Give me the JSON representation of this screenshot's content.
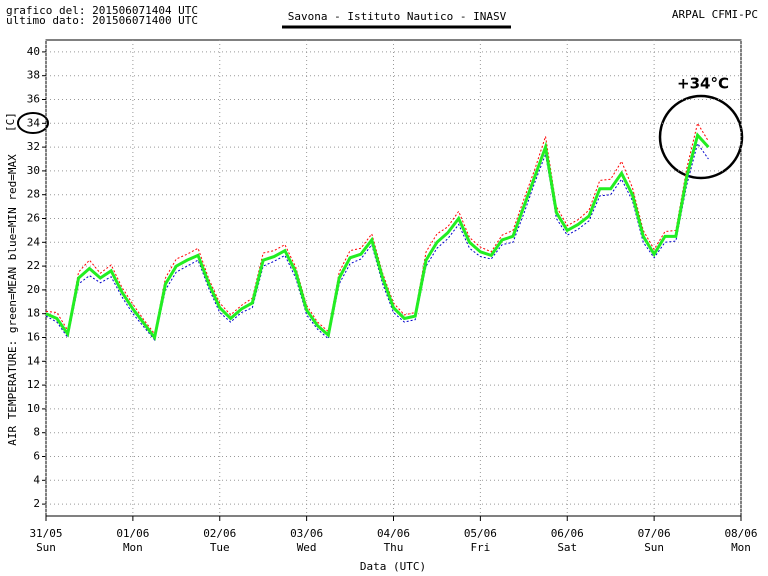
{
  "header": {
    "plotted": "grafico del: 201506071404 UTC",
    "last_data": "ultimo dato: 201506071400 UTC",
    "source": "ARPAL CFMI-PC"
  },
  "chart_data": {
    "type": "line",
    "title": "Savona - Istituto Nautico - INASV",
    "y_label": "AIR TEMPERATURE: green=MEAN  blue=MIN  red=MAX",
    "y_unit": "[C]",
    "x_label": "Data (UTC)",
    "annotation": "+34°C",
    "grid": true,
    "xlim": [
      0,
      8
    ],
    "xticks": [
      {
        "value": 0,
        "label": "31/05",
        "day": "Sun"
      },
      {
        "value": 1,
        "label": "01/06",
        "day": "Mon"
      },
      {
        "value": 2,
        "label": "02/06",
        "day": "Tue"
      },
      {
        "value": 3,
        "label": "03/06",
        "day": "Wed"
      },
      {
        "value": 4,
        "label": "04/06",
        "day": "Thu"
      },
      {
        "value": 5,
        "label": "05/06",
        "day": "Fri"
      },
      {
        "value": 6,
        "label": "06/06",
        "day": "Sat"
      },
      {
        "value": 7,
        "label": "07/06",
        "day": "Sun"
      },
      {
        "value": 8,
        "label": "08/06",
        "day": "Mon"
      }
    ],
    "ylim": [
      1,
      41
    ],
    "yticks": [
      2,
      4,
      6,
      8,
      10,
      12,
      14,
      16,
      18,
      20,
      22,
      24,
      26,
      28,
      30,
      32,
      34,
      36,
      38,
      40
    ],
    "x": [
      0,
      0.125,
      0.25,
      0.375,
      0.5,
      0.625,
      0.75,
      0.875,
      1,
      1.125,
      1.25,
      1.375,
      1.5,
      1.625,
      1.75,
      1.875,
      2,
      2.125,
      2.25,
      2.375,
      2.5,
      2.625,
      2.75,
      2.875,
      3,
      3.125,
      3.25,
      3.375,
      3.5,
      3.625,
      3.75,
      3.875,
      4,
      4.125,
      4.25,
      4.375,
      4.5,
      4.625,
      4.75,
      4.875,
      5,
      5.125,
      5.25,
      5.375,
      5.5,
      5.625,
      5.75,
      5.875,
      6,
      6.125,
      6.25,
      6.375,
      6.5,
      6.625,
      6.75,
      6.875,
      7,
      7.125,
      7.25,
      7.375,
      7.5,
      7.625
    ],
    "series": [
      {
        "color": "#ff0000",
        "dash": true,
        "values": [
          18.2,
          18.1,
          16.6,
          21.5,
          22.5,
          21.4,
          22.1,
          20.2,
          18.8,
          17.5,
          16.3,
          21.0,
          22.6,
          23.0,
          23.5,
          20.9,
          18.9,
          17.9,
          18.7,
          19.3,
          23.1,
          23.3,
          23.8,
          21.9,
          18.7,
          17.3,
          16.5,
          21.5,
          23.3,
          23.5,
          24.7,
          21.4,
          18.9,
          17.9,
          18.1,
          23.2,
          24.7,
          25.3,
          26.6,
          24.4,
          23.6,
          23.2,
          24.6,
          25.0,
          27.6,
          30.1,
          32.9,
          27.0,
          25.4,
          25.9,
          26.7,
          29.2,
          29.3,
          30.8,
          28.6,
          25.0,
          23.4,
          24.9,
          25.0,
          30.2,
          34.0,
          32.5
        ]
      },
      {
        "color": "#0000cc",
        "dash": true,
        "values": [
          17.8,
          17.3,
          16.0,
          20.5,
          21.2,
          20.6,
          21.1,
          19.4,
          18.0,
          16.9,
          15.8,
          20.0,
          21.5,
          22.0,
          22.5,
          20.1,
          18.1,
          17.3,
          18.1,
          18.5,
          22.0,
          22.4,
          22.9,
          21.0,
          17.9,
          16.7,
          15.9,
          20.5,
          22.2,
          22.6,
          23.8,
          20.5,
          18.1,
          17.3,
          17.5,
          22.0,
          23.5,
          24.3,
          25.5,
          23.5,
          22.8,
          22.6,
          23.8,
          24.0,
          26.4,
          29.0,
          31.4,
          26.0,
          24.6,
          25.1,
          25.8,
          27.9,
          28.0,
          29.3,
          27.5,
          24.0,
          22.7,
          24.0,
          24.1,
          28.8,
          32.3,
          31.0
        ]
      },
      {
        "color": "#22ee22",
        "dash": false,
        "values": [
          18.0,
          17.6,
          16.3,
          21.0,
          21.8,
          21.0,
          21.6,
          19.8,
          18.4,
          17.2,
          16.0,
          20.5,
          22.0,
          22.5,
          22.9,
          20.5,
          18.5,
          17.6,
          18.4,
          18.9,
          22.5,
          22.8,
          23.3,
          21.5,
          18.3,
          17.0,
          16.2,
          21.0,
          22.7,
          23.0,
          24.2,
          21.0,
          18.5,
          17.6,
          17.8,
          22.5,
          24.0,
          24.8,
          26.0,
          24.0,
          23.2,
          22.9,
          24.2,
          24.5,
          27.0,
          29.5,
          32.0,
          26.5,
          25.0,
          25.5,
          26.2,
          28.5,
          28.5,
          29.8,
          28.0,
          24.5,
          23.0,
          24.5,
          24.5,
          29.5,
          33.0,
          32.0
        ]
      }
    ]
  }
}
